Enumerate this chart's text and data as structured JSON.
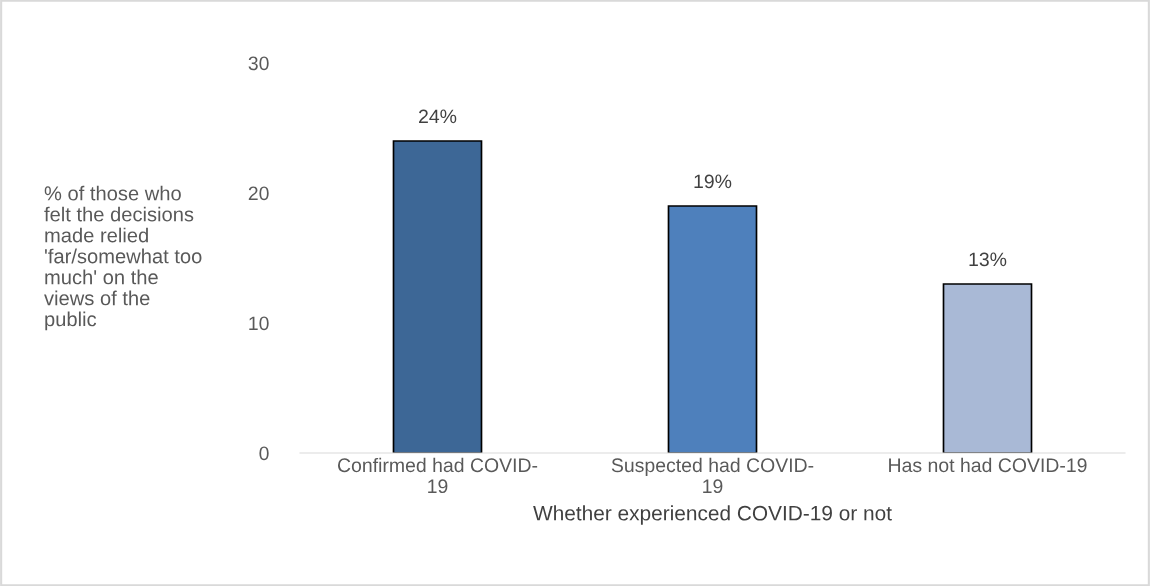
{
  "chart_data": {
    "type": "bar",
    "xlabel": "Whether experienced COVID-19 or not",
    "ylabel": "% of those who\nfelt the decisions\nmade relied\n'far/somewhat too\nmuch' on the\nviews of the\npublic",
    "categories": [
      "Confirmed had COVID-\n19",
      "Suspected had COVID-\n19",
      "Has not had COVID-19"
    ],
    "values": [
      24,
      19,
      13
    ],
    "colors": [
      "#3d6796",
      "#4e80bc",
      "#a9b9d6"
    ],
    "value_labels": [
      "24%",
      "19%",
      "13%"
    ],
    "ylim": [
      0,
      30
    ],
    "yticks": [
      0,
      10,
      20,
      30
    ],
    "grid": false,
    "legend": false
  }
}
